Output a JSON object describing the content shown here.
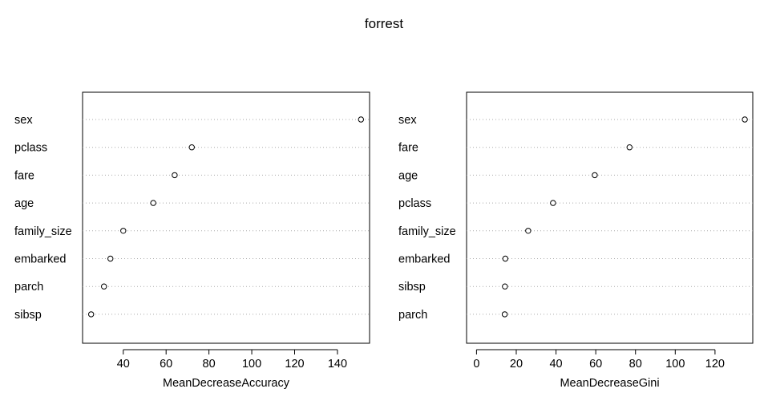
{
  "title": "forrest",
  "chart_data": [
    {
      "type": "scatter",
      "subtype": "dotchart",
      "xlabel": "MeanDecreaseAccuracy",
      "ylabel": "",
      "categories": [
        "sex",
        "pclass",
        "fare",
        "age",
        "family_size",
        "embarked",
        "parch",
        "sibsp"
      ],
      "values": [
        151,
        72,
        64,
        54,
        40,
        34,
        31,
        25
      ],
      "xlim": [
        21,
        155
      ],
      "xticks": [
        40,
        60,
        80,
        100,
        120,
        140
      ],
      "grid": "dotted horizontal"
    },
    {
      "type": "scatter",
      "subtype": "dotchart",
      "xlabel": "MeanDecreaseGini",
      "ylabel": "",
      "categories": [
        "sex",
        "fare",
        "age",
        "pclass",
        "family_size",
        "embarked",
        "sibsp",
        "parch"
      ],
      "values": [
        135,
        77,
        59.5,
        38.5,
        26,
        14.5,
        14.3,
        14.2
      ],
      "xlim": [
        -5,
        139
      ],
      "xticks": [
        0,
        20,
        40,
        60,
        80,
        100,
        120
      ],
      "grid": "dotted horizontal"
    }
  ]
}
